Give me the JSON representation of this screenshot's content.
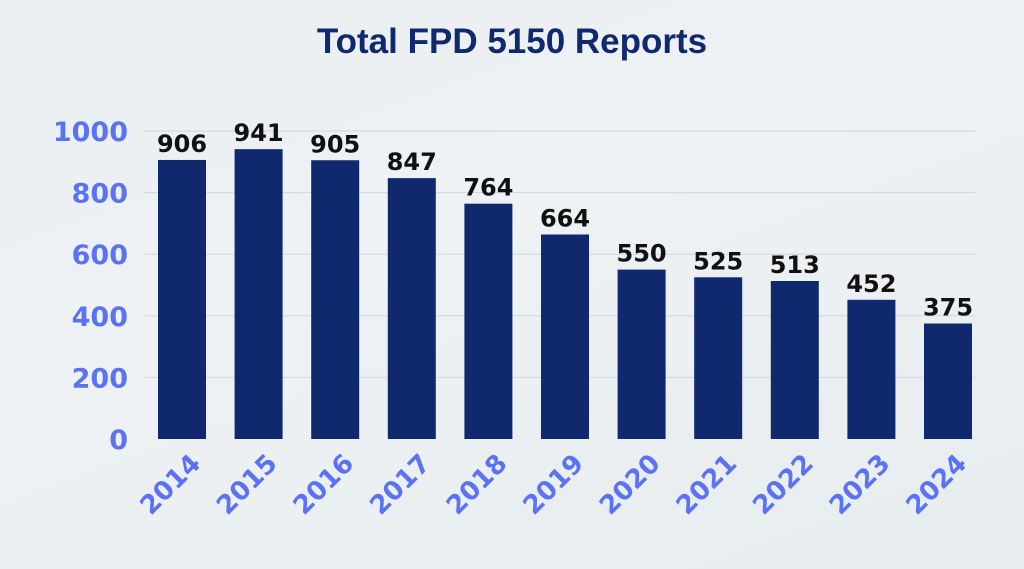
{
  "chart_data": {
    "type": "bar",
    "title": "Total FPD 5150 Reports",
    "xlabel": "",
    "ylabel": "",
    "categories": [
      "2014",
      "2015",
      "2016",
      "2017",
      "2018",
      "2019",
      "2020",
      "2021",
      "2022",
      "2023",
      "2024"
    ],
    "values": [
      906,
      941,
      905,
      847,
      764,
      664,
      550,
      525,
      513,
      452,
      375
    ],
    "ylim": [
      0,
      1000
    ],
    "yticks": [
      "0",
      "200",
      "400",
      "600",
      "800",
      "1000"
    ],
    "grid": true,
    "legend": "none"
  },
  "colors": {
    "bar": "#10296e",
    "title": "#10296e",
    "axis_labels": "#5b72f5",
    "grid": "#cdd6e6"
  }
}
